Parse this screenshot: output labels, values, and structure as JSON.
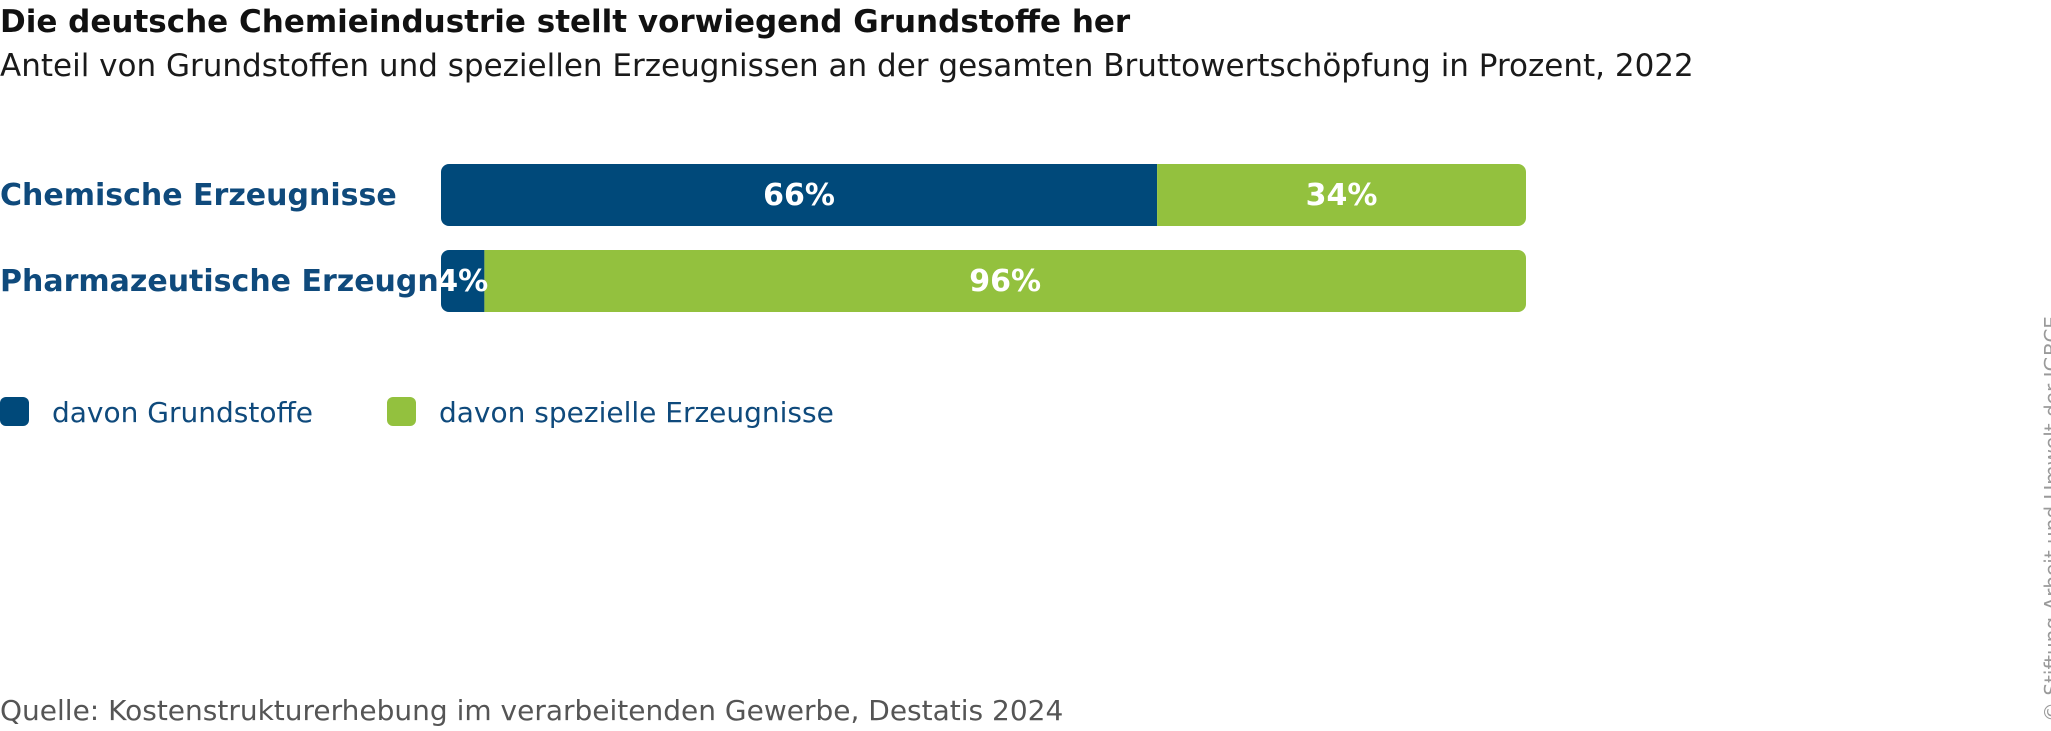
{
  "title": "Die deutsche Chemieindustrie stellt vorwiegend Grundstoffe her",
  "subtitle": "Anteil von Grundstoffen und speziellen Erzeugnissen an der gesamten Bruttowertschöpfung in Prozent, 2022",
  "source": "Quelle: Kostenstrukturerhebung im verarbeitenden Gewerbe, Destatis 2024",
  "copyright": "© Stiftung Arbeit und Umwelt der IGBCE",
  "colors": {
    "grundstoffe": "#00497a",
    "speziell": "#93c13e",
    "category_text": "#0f4a7c"
  },
  "chart_data": {
    "type": "bar",
    "orientation": "horizontal",
    "stacked": true,
    "normalized": true,
    "unit": "%",
    "categories": [
      "Chemische Erzeugnisse",
      "Pharmazeutische Erzeugnisse"
    ],
    "series": [
      {
        "name": "davon Grundstoffe",
        "values": [
          66,
          4
        ],
        "labels": [
          "66%",
          "4%"
        ],
        "color": "#00497a"
      },
      {
        "name": "davon spezielle Erzeugnisse",
        "values": [
          34,
          96
        ],
        "labels": [
          "34%",
          "96%"
        ],
        "color": "#93c13e"
      }
    ],
    "xlim": [
      0,
      100
    ],
    "grid": false,
    "legend_position": "bottom-left"
  }
}
